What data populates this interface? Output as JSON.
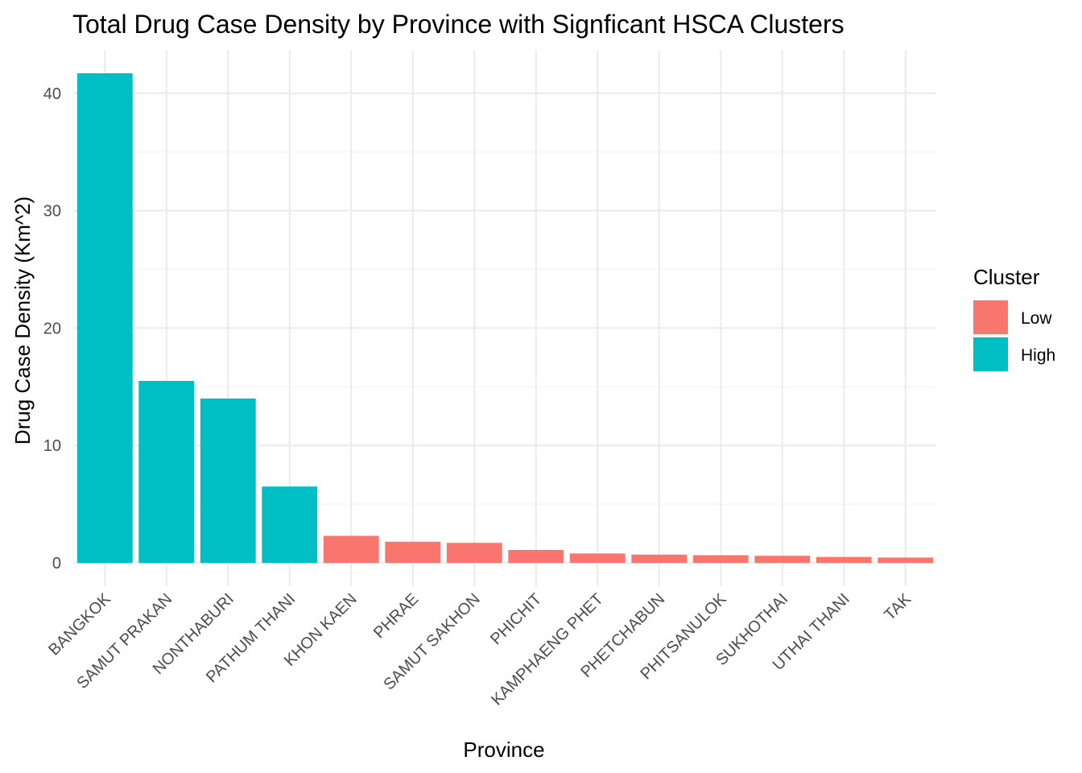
{
  "chart_data": {
    "type": "bar",
    "title": "Total Drug Case Density by Province with Signficant HSCA Clusters",
    "xlabel": "Province",
    "ylabel": "Drug Case Density (Km^2)",
    "ylim": [
      0,
      43
    ],
    "yticks": [
      0,
      10,
      20,
      30,
      40
    ],
    "grid": true,
    "categories": [
      "BANGKOK",
      "SAMUT PRAKAN",
      "NONTHABURI",
      "PATHUM THANI",
      "KHON KAEN",
      "PHRAE",
      "SAMUT SAKHON",
      "PHICHIT",
      "KAMPHAENG PHET",
      "PHETCHABUN",
      "PHITSANULOK",
      "SUKHOTHAI",
      "UTHAI THANI",
      "TAK"
    ],
    "values": [
      41.7,
      15.5,
      14.0,
      6.5,
      2.3,
      1.8,
      1.7,
      1.1,
      0.8,
      0.7,
      0.65,
      0.6,
      0.5,
      0.45
    ],
    "cluster": [
      "High",
      "High",
      "High",
      "High",
      "Low",
      "Low",
      "Low",
      "Low",
      "Low",
      "Low",
      "Low",
      "Low",
      "Low",
      "Low"
    ],
    "legend": {
      "title": "Cluster",
      "placement": "right",
      "entries": [
        {
          "label": "Low",
          "color": "#F8766D"
        },
        {
          "label": "High",
          "color": "#00BFC4"
        }
      ]
    },
    "colors": {
      "Low": "#F8766D",
      "High": "#00BFC4"
    }
  }
}
